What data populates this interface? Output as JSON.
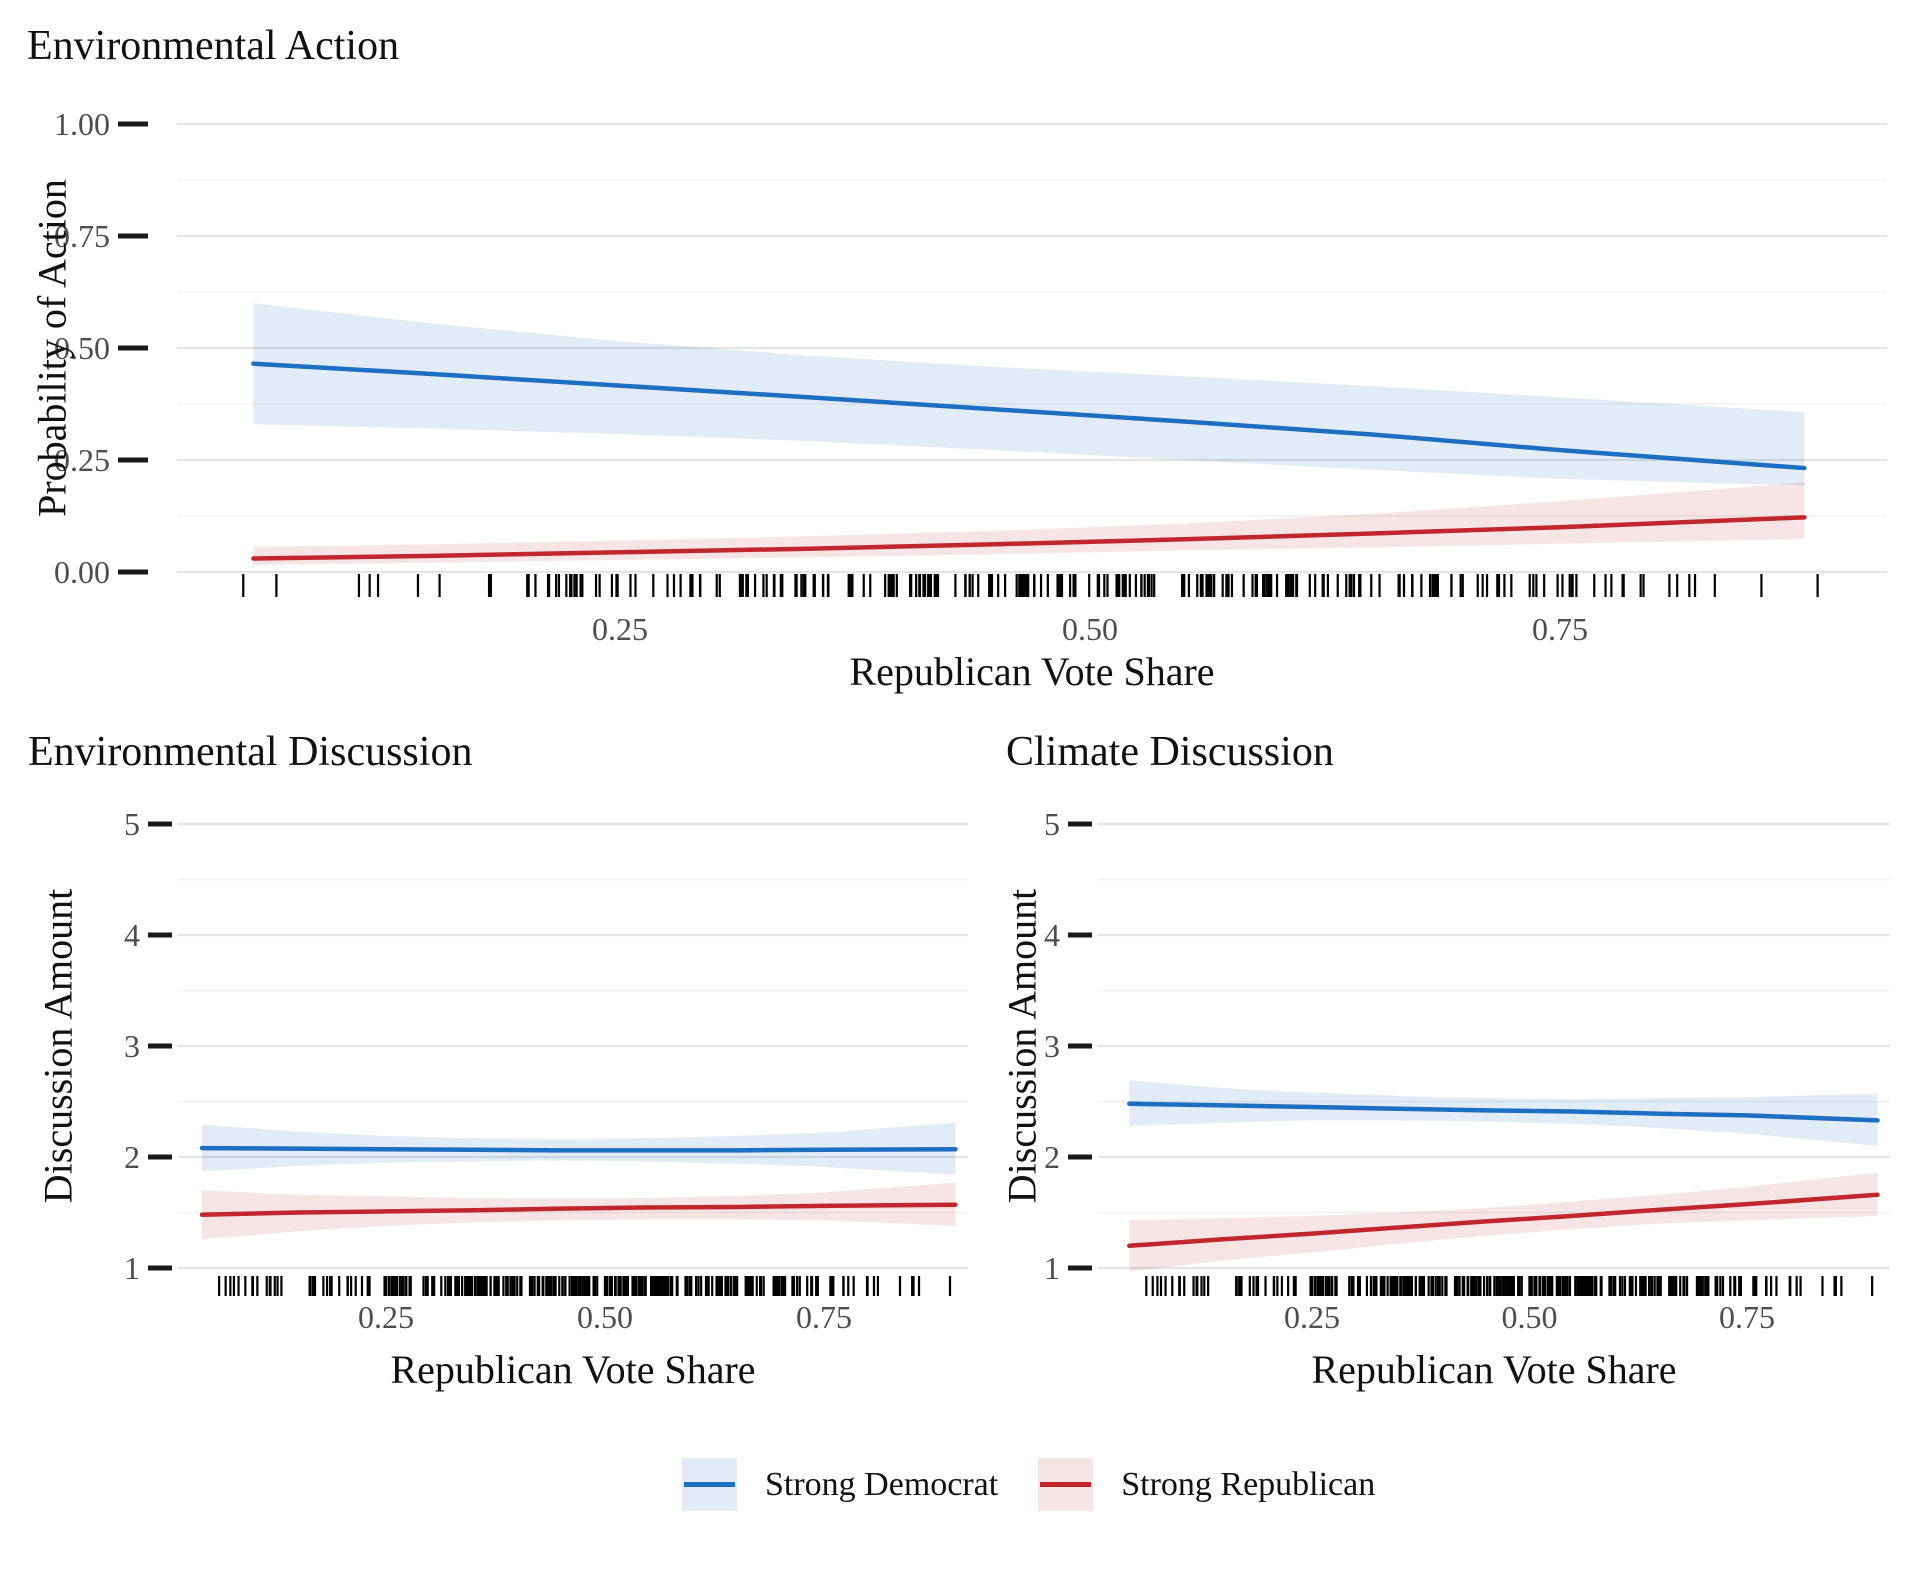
{
  "chart_data": [
    {
      "type": "line",
      "title": "Environmental Action",
      "xlabel": "Republican Vote Share",
      "ylabel": "Probability of Action",
      "ylim": [
        0,
        1
      ],
      "xlim": [
        0.01,
        0.92
      ],
      "grid": "horizontal-only",
      "yticks": {
        "values": [
          0,
          0.25,
          0.5,
          0.75,
          1.0
        ],
        "labels": [
          "0.00",
          "0.25",
          "0.50",
          "0.75",
          "1.00"
        ]
      },
      "xticks": {
        "values": [
          0.25,
          0.5,
          0.75
        ],
        "labels": [
          "0.25",
          "0.50",
          "0.75"
        ]
      },
      "x": [
        0.055,
        0.15,
        0.25,
        0.35,
        0.45,
        0.55,
        0.65,
        0.75,
        0.88
      ],
      "series": [
        {
          "name": "Strong Democrat",
          "color": "#1d6fc2",
          "fill": "rgba(29,111,194,0.13)",
          "values": [
            0.465,
            0.442,
            0.416,
            0.39,
            0.363,
            0.336,
            0.307,
            0.272,
            0.232
          ],
          "upper": [
            0.6,
            0.555,
            0.515,
            0.483,
            0.458,
            0.437,
            0.415,
            0.39,
            0.357
          ],
          "lower": [
            0.33,
            0.32,
            0.308,
            0.292,
            0.272,
            0.25,
            0.228,
            0.208,
            0.193
          ]
        },
        {
          "name": "Strong Republican",
          "color": "#c0272d",
          "fill": "rgba(192,39,45,0.12)",
          "values": [
            0.03,
            0.036,
            0.044,
            0.052,
            0.062,
            0.073,
            0.086,
            0.1,
            0.122
          ],
          "upper": [
            0.056,
            0.062,
            0.07,
            0.08,
            0.092,
            0.108,
            0.13,
            0.158,
            0.2
          ],
          "lower": [
            0.016,
            0.021,
            0.027,
            0.033,
            0.04,
            0.048,
            0.055,
            0.063,
            0.074
          ]
        }
      ],
      "rug": {
        "count": 250,
        "min": 0.035,
        "max": 0.91,
        "seed": 7
      }
    },
    {
      "type": "line",
      "title": "Environmental Discussion",
      "xlabel": "Republican Vote Share",
      "ylabel": "Discussion Amount",
      "ylim": [
        1,
        5
      ],
      "xlim": [
        0.01,
        0.92
      ],
      "grid": "horizontal-only",
      "yticks": {
        "values": [
          1,
          2,
          3,
          4,
          5
        ],
        "labels": [
          "1",
          "2",
          "3",
          "4",
          "5"
        ]
      },
      "xticks": {
        "values": [
          0.25,
          0.5,
          0.75
        ],
        "labels": [
          "0.25",
          "0.50",
          "0.75"
        ]
      },
      "x": [
        0.04,
        0.15,
        0.25,
        0.35,
        0.45,
        0.55,
        0.65,
        0.75,
        0.9
      ],
      "series": [
        {
          "name": "Strong Democrat",
          "color": "#1d6fc2",
          "fill": "rgba(29,111,194,0.13)",
          "values": [
            2.08,
            2.075,
            2.07,
            2.065,
            2.06,
            2.06,
            2.06,
            2.065,
            2.07
          ],
          "upper": [
            2.29,
            2.23,
            2.19,
            2.17,
            2.16,
            2.17,
            2.19,
            2.22,
            2.31
          ],
          "lower": [
            1.87,
            1.92,
            1.95,
            1.96,
            1.97,
            1.96,
            1.94,
            1.91,
            1.84
          ]
        },
        {
          "name": "Strong Republican",
          "color": "#c0272d",
          "fill": "rgba(192,39,45,0.12)",
          "values": [
            1.48,
            1.5,
            1.51,
            1.52,
            1.535,
            1.545,
            1.55,
            1.56,
            1.57
          ],
          "upper": [
            1.7,
            1.66,
            1.645,
            1.63,
            1.625,
            1.63,
            1.65,
            1.68,
            1.77
          ],
          "lower": [
            1.26,
            1.33,
            1.38,
            1.41,
            1.43,
            1.44,
            1.44,
            1.43,
            1.38
          ]
        }
      ],
      "rug": {
        "count": 310,
        "min": 0.02,
        "max": 0.91,
        "seed": 42
      }
    },
    {
      "type": "line",
      "title": "Climate Discussion",
      "xlabel": "Republican Vote Share",
      "ylabel": "Discussion Amount",
      "ylim": [
        1,
        5
      ],
      "xlim": [
        0.01,
        0.92
      ],
      "grid": "horizontal-only",
      "yticks": {
        "values": [
          1,
          2,
          3,
          4,
          5
        ],
        "labels": [
          "1",
          "2",
          "3",
          "4",
          "5"
        ]
      },
      "xticks": {
        "values": [
          0.25,
          0.5,
          0.75
        ],
        "labels": [
          "0.25",
          "0.50",
          "0.75"
        ]
      },
      "x": [
        0.04,
        0.15,
        0.25,
        0.35,
        0.45,
        0.55,
        0.65,
        0.75,
        0.9
      ],
      "series": [
        {
          "name": "Strong Democrat",
          "color": "#1d6fc2",
          "fill": "rgba(29,111,194,0.13)",
          "values": [
            2.48,
            2.465,
            2.45,
            2.435,
            2.42,
            2.41,
            2.39,
            2.375,
            2.33
          ],
          "upper": [
            2.69,
            2.62,
            2.58,
            2.55,
            2.53,
            2.52,
            2.53,
            2.54,
            2.57
          ],
          "lower": [
            2.28,
            2.31,
            2.33,
            2.33,
            2.32,
            2.3,
            2.26,
            2.21,
            2.1
          ]
        },
        {
          "name": "Strong Republican",
          "color": "#c0272d",
          "fill": "rgba(192,39,45,0.12)",
          "values": [
            1.2,
            1.26,
            1.31,
            1.365,
            1.42,
            1.47,
            1.525,
            1.575,
            1.66
          ],
          "upper": [
            1.43,
            1.45,
            1.47,
            1.5,
            1.54,
            1.6,
            1.66,
            1.73,
            1.86
          ],
          "lower": [
            0.97,
            1.07,
            1.14,
            1.22,
            1.29,
            1.35,
            1.4,
            1.43,
            1.47
          ]
        }
      ],
      "rug": {
        "count": 310,
        "min": 0.02,
        "max": 0.91,
        "seed": 42
      }
    }
  ],
  "legend": {
    "items": [
      {
        "label": "Strong Democrat",
        "line": "#1d6fc2",
        "fill": "#e2ecf7"
      },
      {
        "label": "Strong Republican",
        "line": "#c0272d",
        "fill": "#f7e5e6"
      }
    ]
  }
}
